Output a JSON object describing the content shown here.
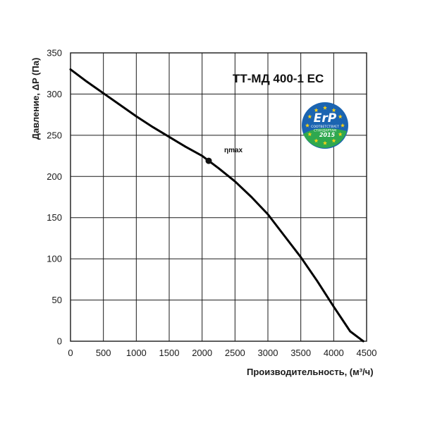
{
  "chart_data": {
    "type": "line",
    "title": "ТТ-МД 400-1 ЕС",
    "xlabel": "Производительность, (м³/ч)",
    "ylabel": "Давление, ΔP (Па)",
    "xlim": [
      0,
      4500
    ],
    "ylim": [
      0,
      350
    ],
    "xticks": [
      0,
      500,
      1000,
      1500,
      2000,
      2500,
      3000,
      3500,
      4000,
      4500
    ],
    "yticks": [
      0,
      50,
      100,
      150,
      200,
      250,
      300,
      350
    ],
    "grid": true,
    "series": [
      {
        "x": [
          0,
          250,
          500,
          750,
          1000,
          1250,
          1500,
          1750,
          2000,
          2100,
          2250,
          2500,
          2750,
          3000,
          3250,
          3500,
          3750,
          4000,
          4250,
          4450
        ],
        "y": [
          330,
          315,
          301,
          287,
          273,
          260,
          248,
          236,
          225,
          219,
          210,
          194,
          175,
          154,
          128,
          102,
          73,
          42,
          12,
          0
        ],
        "color": "#000000"
      }
    ],
    "annotations": [
      {
        "label": "ηmax",
        "x": 2100,
        "y": 219
      }
    ]
  },
  "badge": {
    "main": "ErP",
    "line1": "СООТВЕТСТВУЕТ",
    "line2": "СТАНДАРТАМ",
    "year": "2015",
    "colors": {
      "blue": "#1b64b1",
      "green": "#2fa84f",
      "star": "#f7d117"
    }
  }
}
